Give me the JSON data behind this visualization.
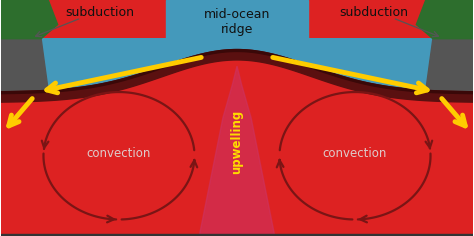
{
  "figsize": [
    4.74,
    2.36
  ],
  "dpi": 100,
  "bg_color": "#ffffff",
  "ocean_color": "#4499bb",
  "land_left_color": "#2d6e2d",
  "land_right_color": "#2d6e2d",
  "gray_dark_color": "#555555",
  "crust_color": "#5a1010",
  "mantle_red_color": "#dd2222",
  "mantle_dark_color": "#aa1111",
  "upwelling_color": "#cc3366",
  "arrow_dark_color": "#7a1515",
  "arrow_yellow_color": "#ffcc00",
  "text_color_black": "#111111",
  "text_color_white": "#dddddd",
  "text_color_yellow": "#ffdd00",
  "title_label": "mid-ocean\nridge",
  "left_label": "subduction",
  "right_label": "subduction",
  "upwelling_label": "upwelling",
  "convection_left_label": "convection",
  "convection_right_label": "convection"
}
